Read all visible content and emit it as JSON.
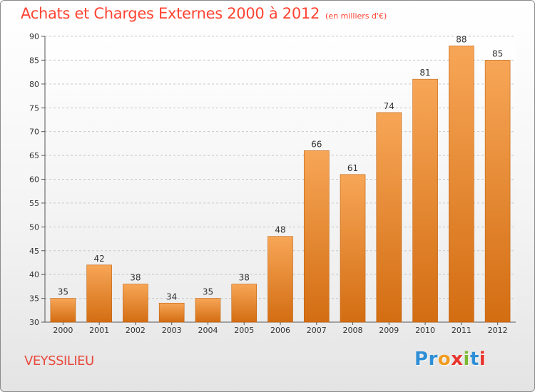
{
  "title": "Achats et Charges Externes 2000 à 2012",
  "subtitle": "(en milliers d'€)",
  "commune": "VEYSSILIEU",
  "logo": {
    "letters": [
      "P",
      "r",
      "o",
      "x",
      "i",
      "t",
      "i"
    ],
    "colors": [
      "#2f8fd6",
      "#2f8fd6",
      "#f39c1f",
      "#e8342e",
      "#7ab832",
      "#2f8fd6",
      "#e8342e"
    ]
  },
  "colors": {
    "bar_top": "#f7a657",
    "bar_bottom": "#d36d12",
    "title": "#ff4433",
    "grid": "#c8c8c8"
  },
  "chart_data": {
    "type": "bar",
    "categories": [
      "2000",
      "2001",
      "2002",
      "2003",
      "2004",
      "2005",
      "2006",
      "2007",
      "2008",
      "2009",
      "2010",
      "2011",
      "2012"
    ],
    "values": [
      35,
      42,
      38,
      34,
      35,
      38,
      48,
      66,
      61,
      74,
      81,
      88,
      85
    ],
    "title": "Achats et Charges Externes 2000 à 2012",
    "xlabel": "",
    "ylabel": "",
    "ylim": [
      30,
      90
    ],
    "yticks": [
      30,
      35,
      40,
      45,
      50,
      55,
      60,
      65,
      70,
      75,
      80,
      85,
      90
    ],
    "grid": true,
    "legend": "none"
  }
}
